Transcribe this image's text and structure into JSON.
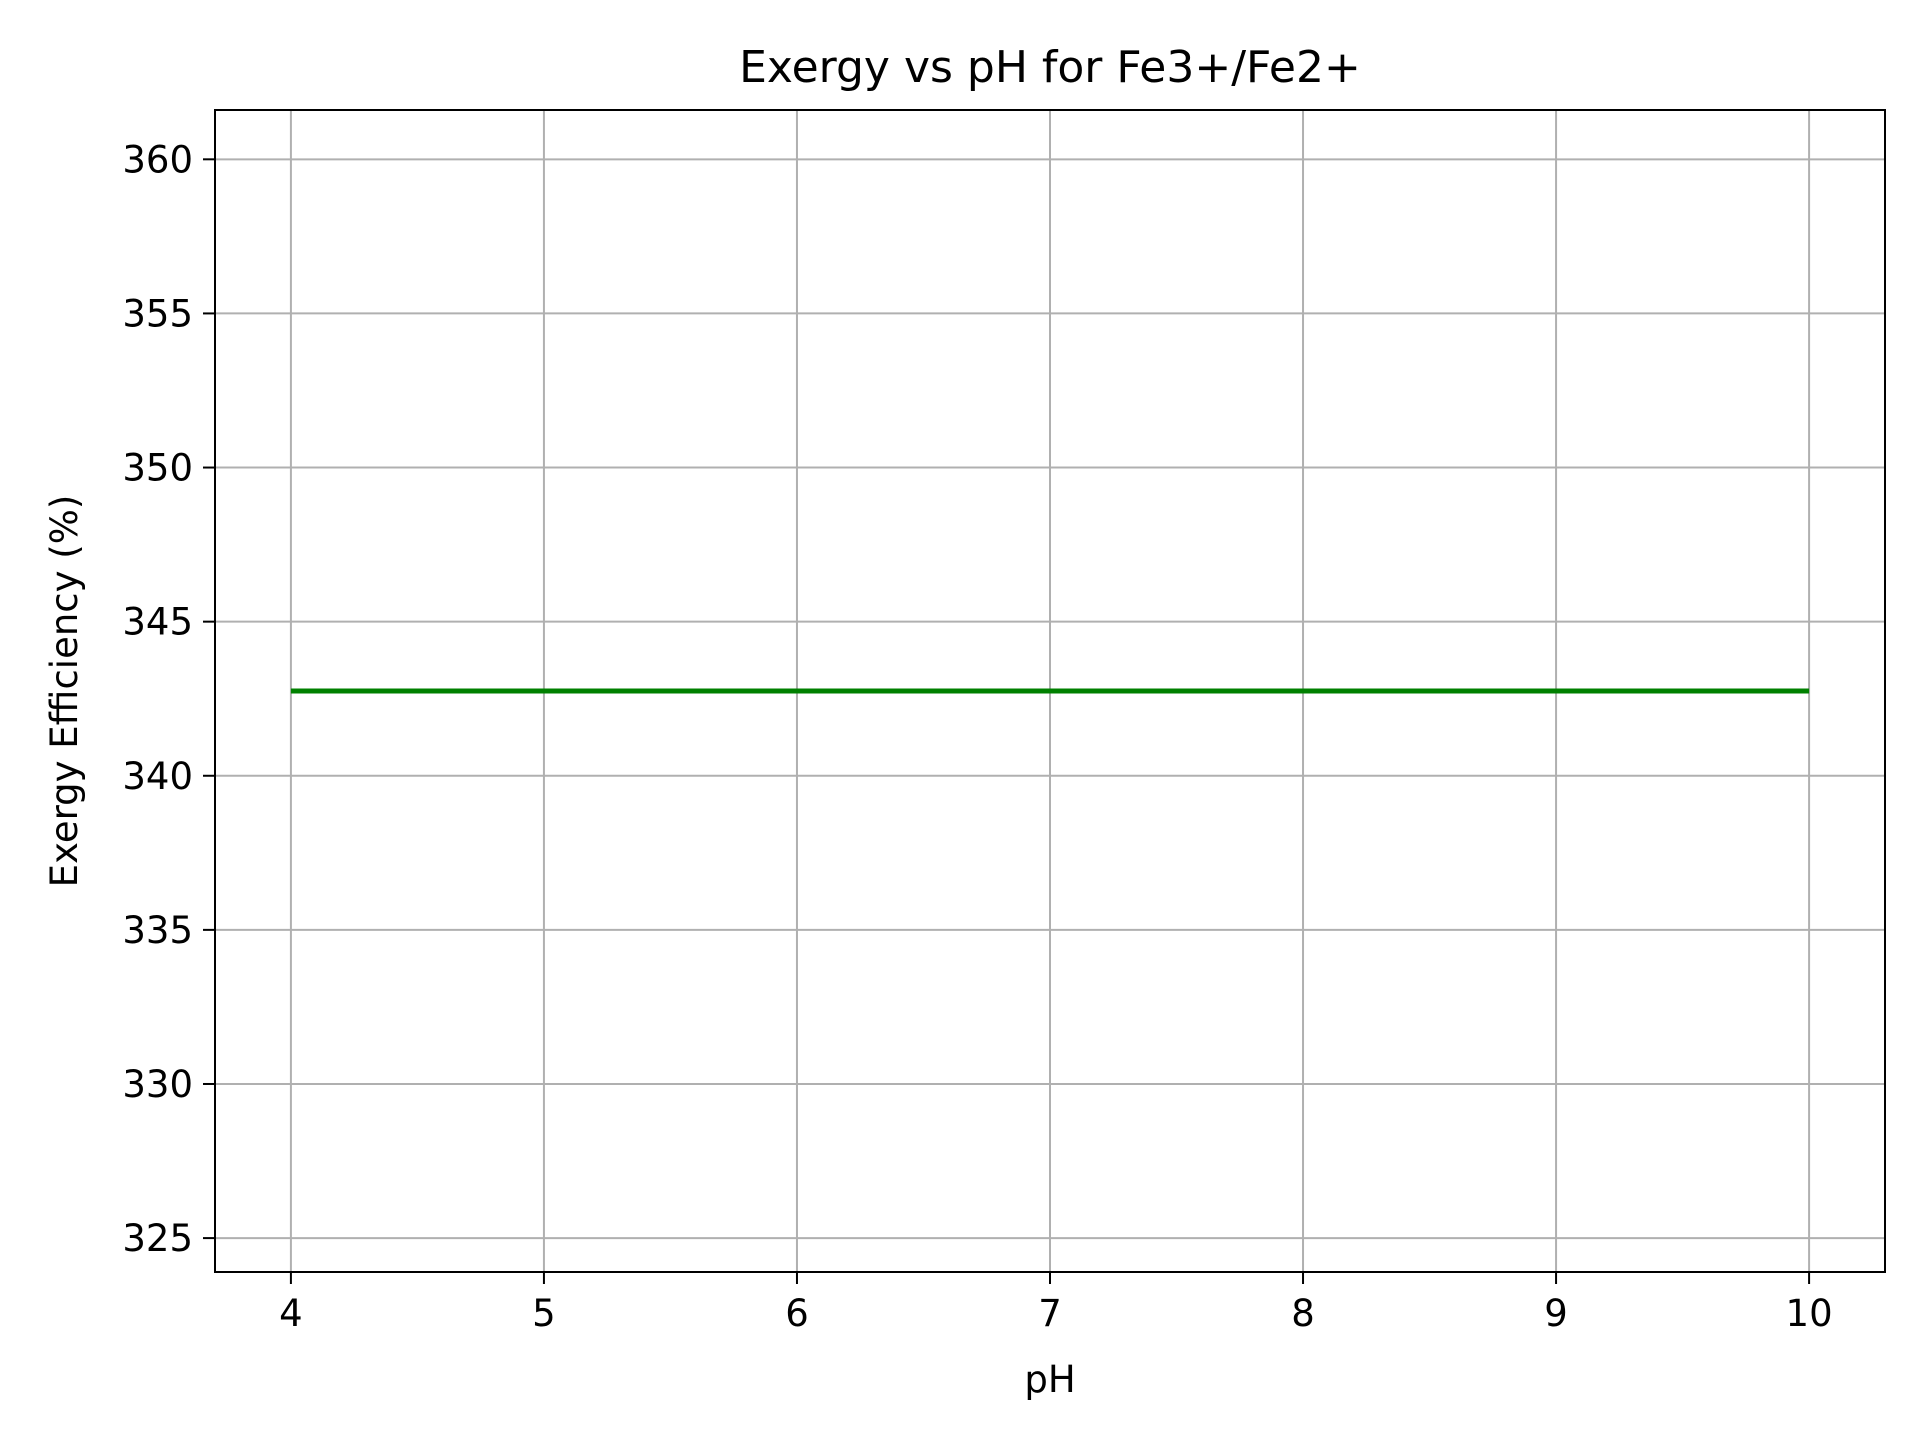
{
  "chart_data": {
    "type": "line",
    "title": "Exergy vs pH for Fe3+/Fe2+",
    "xlabel": "pH",
    "ylabel": "Exergy Efficiency (%)",
    "xlim": [
      3.7,
      10.3
    ],
    "ylim": [
      323.9,
      361.6
    ],
    "x_ticks": [
      4,
      5,
      6,
      7,
      8,
      9,
      10
    ],
    "x_tick_labels": [
      "4",
      "5",
      "6",
      "7",
      "8",
      "9",
      "10"
    ],
    "y_ticks": [
      325,
      330,
      335,
      340,
      345,
      350,
      355,
      360
    ],
    "y_tick_labels": [
      "325",
      "330",
      "335",
      "340",
      "345",
      "350",
      "355",
      "360"
    ],
    "grid": true,
    "colors": {
      "line": "#008000",
      "grid": "#b0b0b0",
      "axes": "#000000"
    },
    "series": [
      {
        "color": "#008000",
        "x": [
          4,
          5,
          6,
          7,
          8,
          9,
          10
        ],
        "y": [
          342.75,
          342.75,
          342.75,
          342.75,
          342.75,
          342.75,
          342.75
        ]
      }
    ]
  }
}
